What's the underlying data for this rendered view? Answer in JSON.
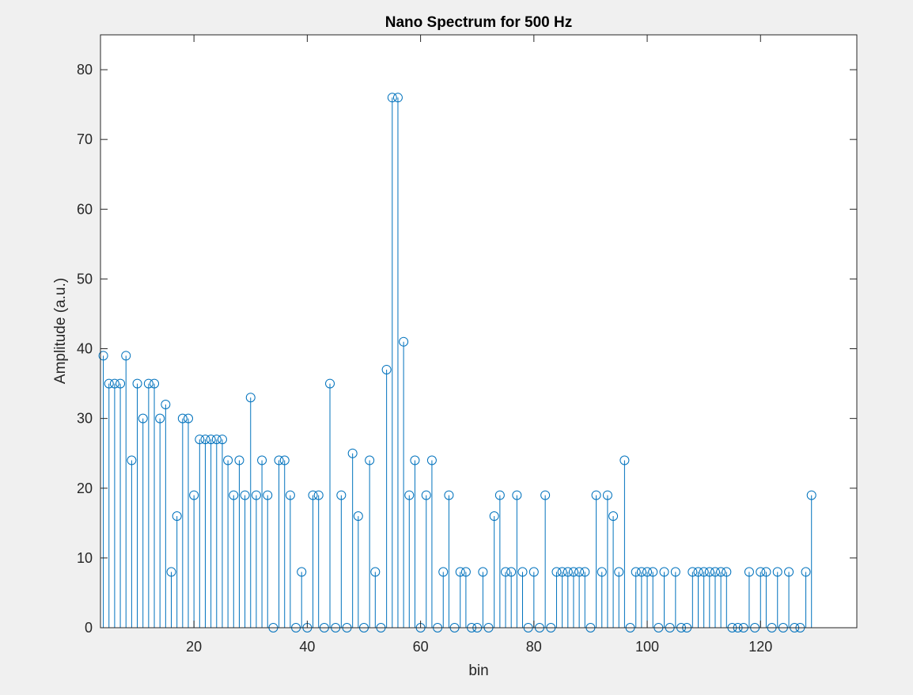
{
  "chart_data": {
    "type": "stem",
    "title": "Nano Spectrum for 500 Hz",
    "xlabel": "bin",
    "ylabel": "Amplitude (a.u.)",
    "xlim": [
      3.5,
      137
    ],
    "ylim": [
      0,
      85
    ],
    "xticks": [
      20,
      40,
      60,
      80,
      100,
      120
    ],
    "yticks": [
      0,
      10,
      20,
      30,
      40,
      50,
      60,
      70,
      80
    ],
    "grid": false,
    "marker": "circle",
    "colors": {
      "stem": "#0072bd",
      "axes": "#262626",
      "plot_bg": "#ffffff",
      "figure_bg": "#f0f0f0"
    },
    "x_start": 4,
    "values": [
      39,
      35,
      35,
      35,
      39,
      24,
      35,
      30,
      35,
      35,
      30,
      32,
      8,
      16,
      30,
      30,
      19,
      27,
      27,
      27,
      27,
      27,
      24,
      19,
      24,
      19,
      33,
      19,
      24,
      19,
      0,
      24,
      24,
      19,
      0,
      8,
      0,
      19,
      19,
      0,
      35,
      0,
      19,
      0,
      25,
      16,
      0,
      24,
      8,
      0,
      37,
      76,
      76,
      41,
      19,
      24,
      0,
      19,
      24,
      0,
      8,
      19,
      0,
      8,
      8,
      0,
      0,
      8,
      0,
      16,
      19,
      8,
      8,
      19,
      8,
      0,
      8,
      0,
      19,
      0,
      8,
      8,
      8,
      8,
      8,
      8,
      0,
      19,
      8,
      19,
      16,
      8,
      24,
      0,
      8,
      8,
      8,
      8,
      0,
      8,
      0,
      8,
      0,
      0,
      8,
      8,
      8,
      8,
      8,
      8,
      8,
      0,
      0,
      0,
      8,
      0,
      8,
      8,
      0,
      8,
      0,
      8,
      0,
      0,
      8,
      19
    ]
  }
}
